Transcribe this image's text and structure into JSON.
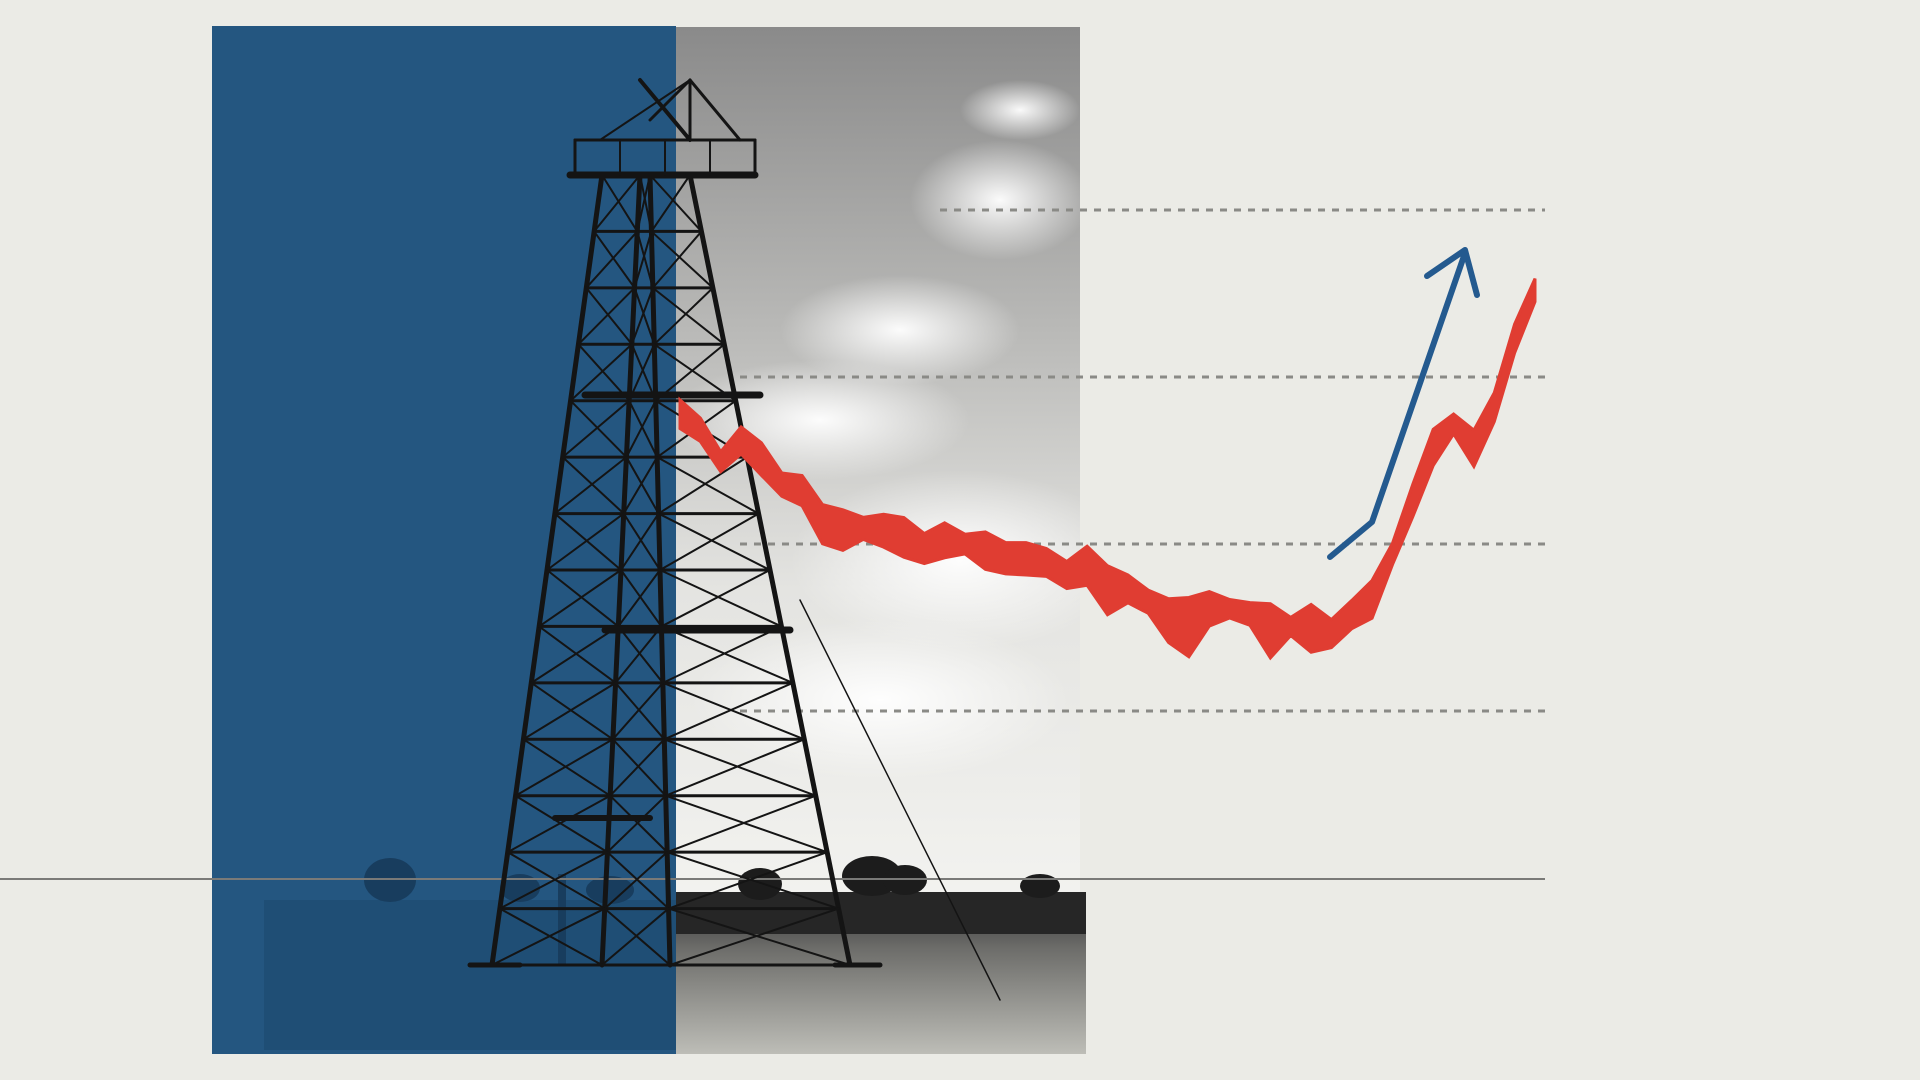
{
  "colors": {
    "background": "#ebebe6",
    "blue_panel": "#245680",
    "sky_dark": "#8e8e8e",
    "sky_light": "#d8d8d6",
    "ground_dark": "#1f1f1f",
    "ground_light": "#c9c9c4",
    "derrick": "#141414",
    "trend_red": "#e03d32",
    "arrow_blue": "#245a8f",
    "gridline": "#8a8a86",
    "baseline": "#7a7a78"
  },
  "icons": {
    "derrick": "oil-derrick-icon",
    "arrow": "up-right-arrow-icon",
    "trees": "tree-silhouette-icon",
    "clouds": "cloud-icon"
  },
  "trend": {
    "shape": "falls from high-left, bottoms out, then rises sharply at right",
    "relative_levels": [
      0.62,
      0.58,
      0.52,
      0.55,
      0.5,
      0.46,
      0.44,
      0.4,
      0.37,
      0.35,
      0.34,
      0.33,
      0.3,
      0.32,
      0.33,
      0.3,
      0.28,
      0.27,
      0.26,
      0.25,
      0.26,
      0.23,
      0.21,
      0.19,
      0.17,
      0.16,
      0.17,
      0.16,
      0.15,
      0.13,
      0.12,
      0.13,
      0.12,
      0.14,
      0.18,
      0.3,
      0.43,
      0.53,
      0.58,
      0.55,
      0.62,
      0.78,
      0.9
    ]
  }
}
